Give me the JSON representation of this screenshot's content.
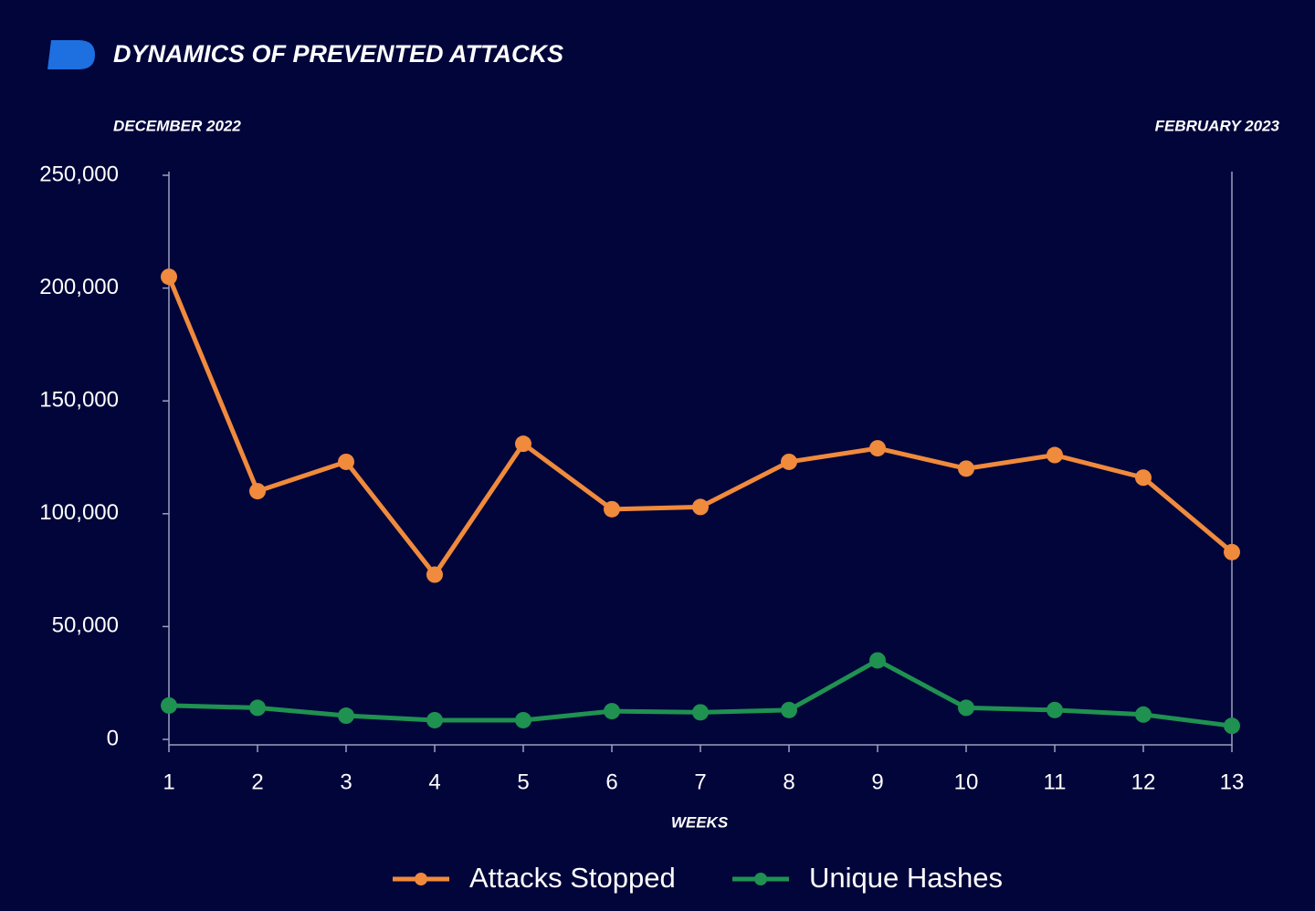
{
  "chart_data": {
    "type": "line",
    "title": "DYNAMICS OF PREVENTED ATTACKS",
    "annotations": [
      "DECEMBER 2022",
      "FEBRUARY 2023"
    ],
    "x_label": "WEEKS",
    "x": [
      1,
      2,
      3,
      4,
      5,
      6,
      7,
      8,
      9,
      10,
      11,
      12,
      13
    ],
    "xlim": [
      1,
      13
    ],
    "xticks": [
      1,
      2,
      3,
      4,
      5,
      6,
      7,
      8,
      9,
      10,
      11,
      12,
      13
    ],
    "ylim": [
      0,
      250000
    ],
    "yticks": [
      0,
      {
        "value": 50000,
        "label": "50,000"
      },
      {
        "value": 100000,
        "label": "100,000"
      },
      {
        "value": 150000,
        "label": "150,000"
      },
      {
        "value": 200000,
        "label": "200,000"
      },
      {
        "value": 250000,
        "label": "250,000"
      }
    ],
    "series": [
      {
        "name": "Attacks Stopped",
        "color": "#f08a3c",
        "values": [
          205000,
          110000,
          123000,
          73000,
          131000,
          102000,
          103000,
          123000,
          129000,
          120000,
          126000,
          116000,
          83000
        ]
      },
      {
        "name": "Unique Hashes",
        "color": "#1f9150",
        "values": [
          15000,
          14000,
          10500,
          8500,
          8500,
          12500,
          12000,
          13000,
          35000,
          14000,
          13000,
          11000,
          6000
        ]
      }
    ]
  }
}
